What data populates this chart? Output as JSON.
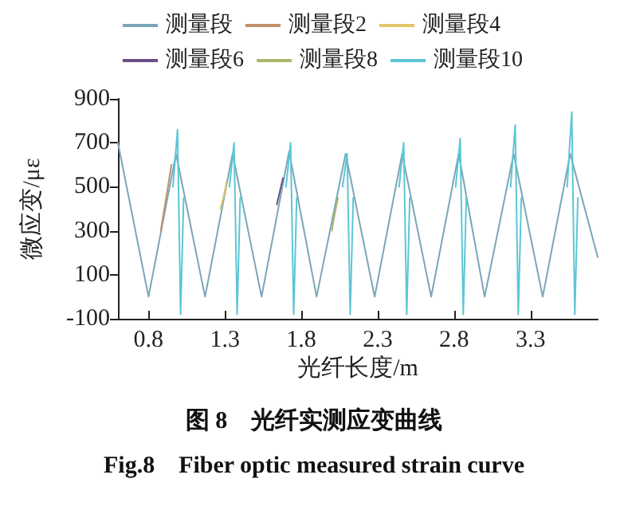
{
  "chart_data": {
    "type": "line",
    "xlabel": "光纤长度/m",
    "ylabel": "微应变/με",
    "annotations": [
      "图 8　光纤实测应变曲线",
      "Fig.8　Fiber optic measured strain curve"
    ],
    "xlim": [
      0.6,
      3.74
    ],
    "xticks": [
      0.8,
      1.3,
      1.8,
      2.3,
      2.8,
      3.3
    ],
    "ylim": [
      -100,
      900
    ],
    "yticks": [
      -100,
      100,
      300,
      500,
      700,
      900
    ],
    "grid": false,
    "legend": "top",
    "marker": "none",
    "line_style": "solid",
    "series": [
      {
        "name": "测量段",
        "color": "#7aa6b8",
        "x": [
          0.6,
          0.8,
          0.98,
          1.17,
          1.35,
          1.54,
          1.72,
          1.9,
          2.09,
          2.28,
          2.46,
          2.65,
          2.83,
          3.0,
          3.19,
          3.38,
          3.56,
          3.74
        ],
        "values": [
          700,
          0,
          650,
          0,
          650,
          0,
          660,
          0,
          650,
          0,
          650,
          0,
          650,
          0,
          650,
          0,
          650,
          180
        ]
      },
      {
        "name": "测量段2",
        "color": "#c4906c",
        "x": [
          0.88,
          0.92,
          0.95
        ],
        "values": [
          300,
          470,
          600
        ]
      },
      {
        "name": "测量段4",
        "color": "#e2c46a",
        "x": [
          1.27,
          1.29,
          1.31
        ],
        "values": [
          400,
          450,
          520
        ]
      },
      {
        "name": "测量段6",
        "color": "#6e4f86",
        "x": [
          1.64,
          1.66,
          1.68
        ],
        "values": [
          420,
          480,
          540
        ]
      },
      {
        "name": "测量段8",
        "color": "#a8b86a",
        "x": [
          2.0,
          2.02,
          2.04
        ],
        "values": [
          300,
          380,
          450
        ]
      },
      {
        "name": "测量段10",
        "color": "#5cc6d6",
        "x": [
          0.96,
          0.99,
          1.01,
          1.03,
          1.04,
          1.33,
          1.36,
          1.38,
          1.4,
          1.41,
          1.7,
          1.73,
          1.75,
          1.77,
          1.78,
          2.07,
          2.1,
          2.12,
          2.14,
          2.15,
          2.44,
          2.47,
          2.49,
          2.51,
          2.52,
          2.81,
          2.84,
          2.86,
          2.88,
          2.89,
          3.17,
          3.2,
          3.22,
          3.24,
          3.25,
          3.54,
          3.57,
          3.59,
          3.61
        ],
        "values": [
          500,
          760,
          -80,
          450,
          null,
          500,
          700,
          -80,
          450,
          null,
          500,
          700,
          -80,
          450,
          null,
          500,
          650,
          -80,
          450,
          null,
          500,
          700,
          -80,
          450,
          null,
          500,
          720,
          -80,
          450,
          null,
          500,
          780,
          -80,
          450,
          null,
          500,
          840,
          -80,
          450
        ]
      }
    ]
  }
}
